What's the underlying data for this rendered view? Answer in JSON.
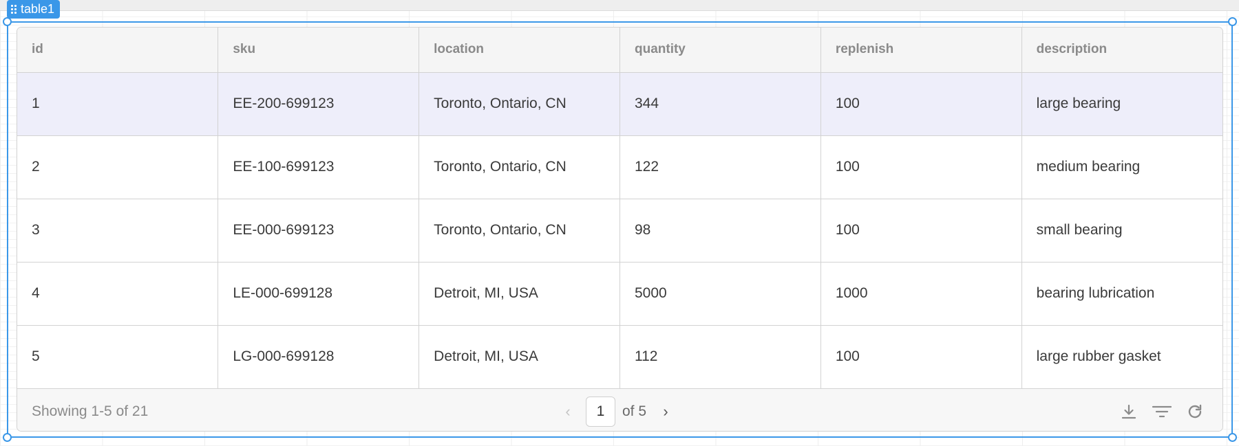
{
  "widget": {
    "name": "table1"
  },
  "table": {
    "columns": [
      "id",
      "sku",
      "location",
      "quantity",
      "replenish",
      "description"
    ],
    "rows": [
      [
        "1",
        "EE-200-699123",
        "Toronto, Ontario, CN",
        "344",
        "100",
        "large bearing"
      ],
      [
        "2",
        "EE-100-699123",
        "Toronto, Ontario, CN",
        "122",
        "100",
        "medium bearing"
      ],
      [
        "3",
        "EE-000-699123",
        "Toronto, Ontario, CN",
        "98",
        "100",
        "small bearing"
      ],
      [
        "4",
        "LE-000-699128",
        "Detroit, MI, USA",
        "5000",
        "1000",
        "bearing lubrication"
      ],
      [
        "5",
        "LG-000-699128",
        "Detroit, MI, USA",
        "112",
        "100",
        "large rubber gasket"
      ]
    ],
    "selected_row": 0
  },
  "footer": {
    "showing": "Showing 1-5 of 21",
    "current_page": "1",
    "of_pages": "of 5",
    "prev_icon": "chevron-left-icon",
    "next_icon": "chevron-right-icon",
    "tools": [
      "download-icon",
      "filter-icon",
      "refresh-icon"
    ]
  },
  "colors": {
    "selection": "#3a97e8",
    "selected_row": "#eeeefa",
    "header_bg": "#f5f5f5"
  }
}
